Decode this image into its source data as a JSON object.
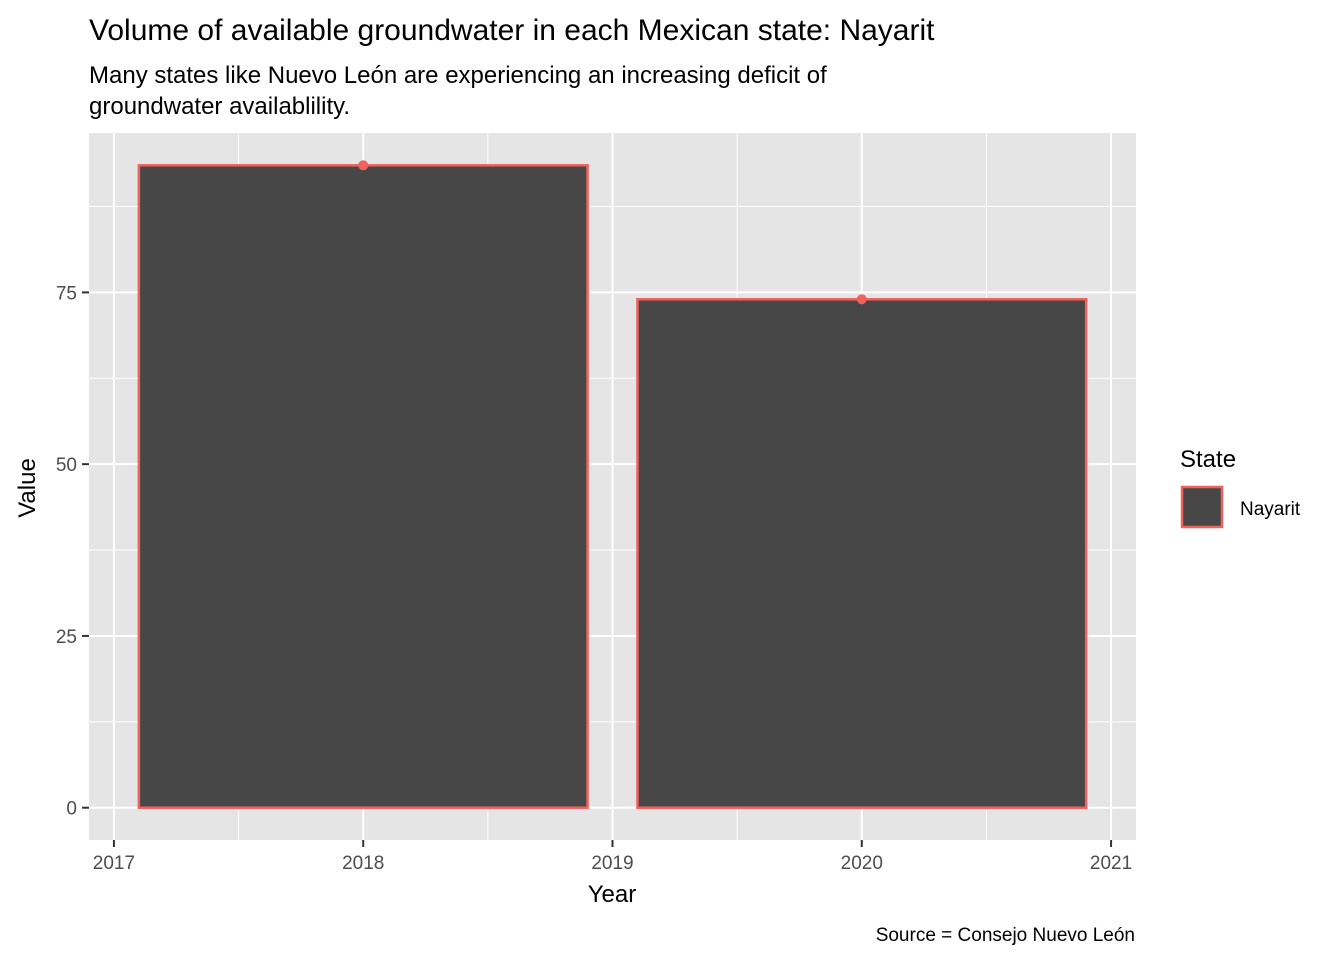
{
  "chart_data": {
    "type": "bar",
    "title": "Volume of available groundwater in each Mexican state: Nayarit",
    "subtitle": [
      "Many states like Nuevo León are experiencing an increasing deficit of",
      "groundwater availablility."
    ],
    "xlabel": "Year",
    "ylabel": "Value",
    "caption": "Source = Consejo Nuevo León",
    "x": [
      2018,
      2020
    ],
    "series": [
      {
        "name": "Nayarit",
        "values": [
          93.5,
          74
        ]
      }
    ],
    "xlim": [
      2016.9,
      2021.1
    ],
    "ylim": [
      -4.7,
      98.2
    ],
    "x_ticks": [
      2017,
      2018,
      2019,
      2020,
      2021
    ],
    "y_ticks": [
      0,
      25,
      50,
      75
    ],
    "bar_width_years": 1.8,
    "show_points": true,
    "grid": true,
    "legend": {
      "title": "State",
      "position": "right"
    },
    "colors": {
      "panel_background": "#e5e5e5",
      "grid": "#ffffff",
      "bar_fill": "#474747",
      "bar_outline": "#f0625e",
      "point": "#f0625e"
    }
  }
}
